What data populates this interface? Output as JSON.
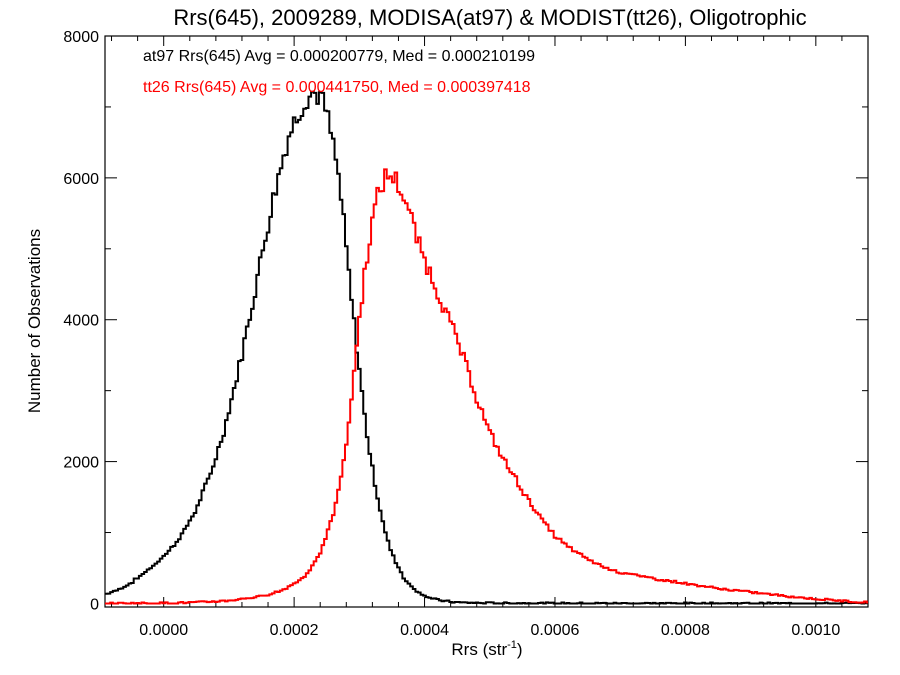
{
  "chart_data": {
    "type": "line",
    "title": "Rrs(645), 2009289, MODISA(at97) & MODIST(tt26), Oligotrophic",
    "xlabel": "Rrs (str",
    "xlabel_sup": "-1",
    "xlabel_close": ")",
    "ylabel": "Number of Observations",
    "xlim": [
      -9e-05,
      0.00108
    ],
    "ylim": [
      -50,
      8000
    ],
    "x_ticks": [
      0.0,
      0.0002,
      0.0004,
      0.0006,
      0.0008,
      0.001
    ],
    "x_tick_labels": [
      "0.0000",
      "0.0002",
      "0.0004",
      "0.0006",
      "0.0008",
      "0.0010"
    ],
    "y_ticks": [
      0,
      2000,
      4000,
      6000,
      8000
    ],
    "y_tick_labels": [
      "0",
      "2000",
      "4000",
      "6000",
      "8000"
    ],
    "grid": false,
    "annotations": [
      {
        "text": "at97 Rrs(645) Avg = 0.000200779, Med = 0.000210199",
        "color": "#000000"
      },
      {
        "text": "tt26 Rrs(645) Avg = 0.000441750, Med = 0.000397418",
        "color": "#ff0000"
      }
    ],
    "series": [
      {
        "color": "#000000",
        "x": [
          -9e-05,
          -7e-05,
          -5e-05,
          -3e-05,
          -1e-05,
          1e-05,
          3e-05,
          5e-05,
          7e-05,
          9e-05,
          0.00011,
          0.00013,
          0.00015,
          0.00017,
          0.00019,
          0.00021,
          0.00022,
          0.00023,
          0.00024,
          0.00025,
          0.00026,
          0.00027,
          0.00028,
          0.00029,
          0.0003,
          0.00031,
          0.00032,
          0.00033,
          0.00034,
          0.00035,
          0.00037,
          0.00039,
          0.00041,
          0.00043,
          0.00045,
          0.00048,
          0.00052,
          0.0006,
          0.00108
        ],
        "y": [
          130,
          190,
          290,
          430,
          580,
          760,
          1000,
          1330,
          1780,
          2350,
          3100,
          3950,
          4900,
          5800,
          6550,
          7000,
          7150,
          7200,
          7150,
          6900,
          6450,
          5900,
          5000,
          4100,
          3300,
          2500,
          1900,
          1400,
          1000,
          700,
          330,
          160,
          70,
          35,
          15,
          8,
          4,
          2,
          0
        ]
      },
      {
        "color": "#ff0000",
        "x": [
          -9e-05,
          0.0,
          5e-05,
          0.0001,
          0.00015,
          0.00018,
          0.0002,
          0.00022,
          0.00024,
          0.00026,
          0.00028,
          0.00029,
          0.0003,
          0.00031,
          0.00032,
          0.00033,
          0.00034,
          0.00035,
          0.00036,
          0.00037,
          0.00038,
          0.00039,
          0.0004,
          0.00042,
          0.00044,
          0.00046,
          0.00048,
          0.0005,
          0.00052,
          0.00054,
          0.00056,
          0.00058,
          0.0006,
          0.00062,
          0.00064,
          0.00066,
          0.00068,
          0.0007,
          0.00074,
          0.00078,
          0.00082,
          0.00086,
          0.0009,
          0.00094,
          0.00098,
          0.00102,
          0.00106,
          0.00108
        ],
        "y": [
          0,
          5,
          15,
          40,
          100,
          180,
          280,
          420,
          700,
          1250,
          2200,
          3100,
          4000,
          4800,
          5400,
          5800,
          6000,
          6050,
          5900,
          5700,
          5400,
          5100,
          4850,
          4400,
          3950,
          3450,
          2900,
          2400,
          2050,
          1750,
          1450,
          1180,
          950,
          800,
          680,
          580,
          500,
          440,
          370,
          310,
          250,
          200,
          160,
          120,
          80,
          50,
          25,
          15
        ]
      }
    ]
  }
}
